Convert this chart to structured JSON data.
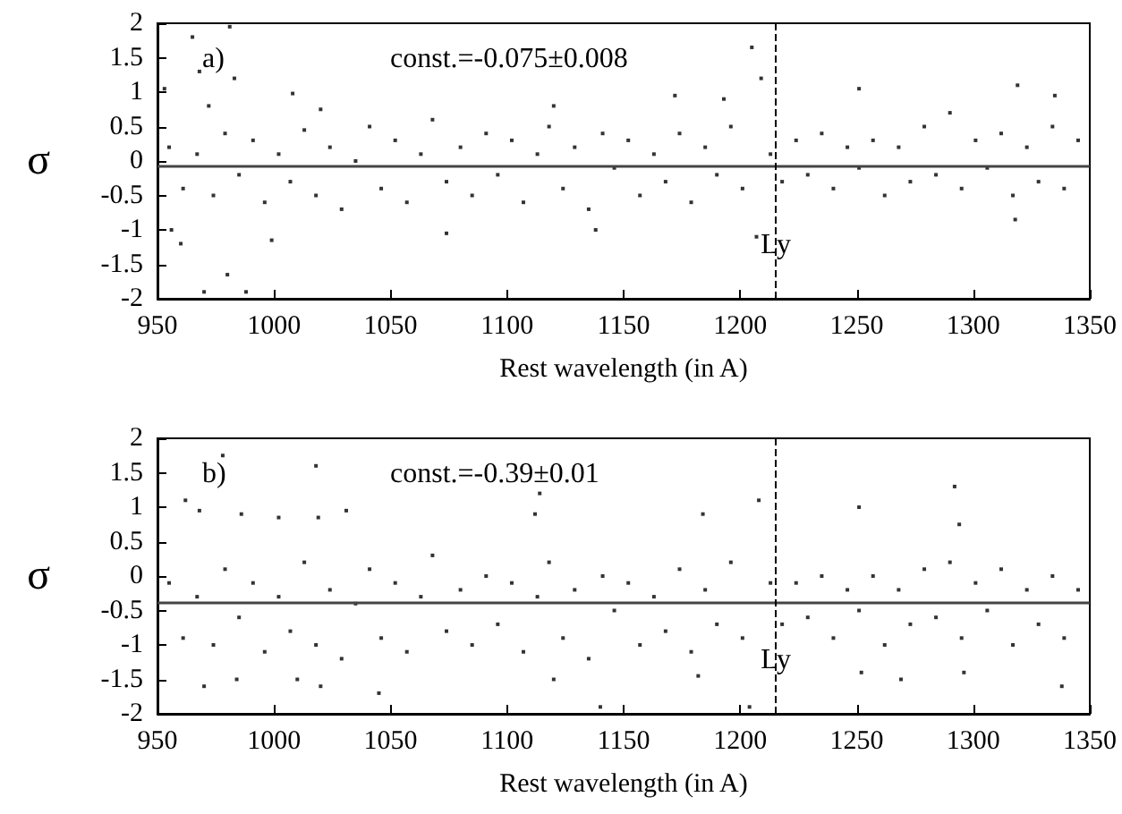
{
  "chart_data": [
    {
      "type": "scatter",
      "xlabel": "Rest wavelength (in A)",
      "ylabel": "σ",
      "color": "#000000",
      "marker": "square",
      "grid": false,
      "xlim": [
        950,
        1350
      ],
      "xticks": [
        950,
        1000,
        1050,
        1100,
        1150,
        1200,
        1250,
        1300,
        1350
      ],
      "ylim": [
        -2,
        2
      ],
      "yticks": [
        -2,
        -1.5,
        -1,
        -0.5,
        0,
        0.5,
        1,
        1.5,
        2
      ],
      "annotations": [
        "a)",
        "const.=-0.075±0.008"
      ],
      "ref_lines": [
        {
          "axis": "y",
          "value": -0.075,
          "color": "#444444",
          "line_style": "solid"
        },
        {
          "axis": "x",
          "value": 1215,
          "label": "Ly",
          "color": "#000000",
          "line_style": "dashed"
        }
      ],
      "x": [
        955,
        961,
        967,
        974,
        979,
        985,
        991,
        996,
        1002,
        1007,
        1013,
        1018,
        1024,
        1029,
        1035,
        1041,
        1046,
        1052,
        1057,
        1063,
        1068,
        1074,
        1080,
        1085,
        1091,
        1096,
        1102,
        1107,
        1113,
        1118,
        1124,
        1129,
        1135,
        1141,
        1146,
        1152,
        1157,
        1163,
        1168,
        1174,
        1179,
        1185,
        1190,
        1196,
        1201,
        1213,
        1218,
        1224,
        1229,
        1235,
        1240,
        1246,
        1251,
        1257,
        1262,
        1268,
        1273,
        1279,
        1284,
        1290,
        1295,
        1301,
        1306,
        1312,
        1317,
        1323,
        1328,
        1334,
        1339,
        1345,
        953,
        965,
        968,
        972,
        981,
        983,
        956,
        960,
        970,
        980,
        988,
        999,
        1008,
        1020,
        1074,
        1120,
        1138,
        1172,
        1193,
        1205,
        1209,
        1207,
        1251,
        1319,
        1318,
        1335
      ],
      "values": [
        0.2,
        -0.4,
        0.1,
        -0.5,
        0.4,
        -0.2,
        0.3,
        -0.6,
        0.1,
        -0.3,
        0.45,
        -0.5,
        0.2,
        -0.7,
        0.0,
        0.5,
        -0.4,
        0.3,
        -0.6,
        0.1,
        0.6,
        -0.3,
        0.2,
        -0.5,
        0.4,
        -0.2,
        0.3,
        -0.6,
        0.1,
        0.5,
        -0.4,
        0.2,
        -0.7,
        0.4,
        -0.1,
        0.3,
        -0.5,
        0.1,
        -0.3,
        0.4,
        -0.6,
        0.2,
        -0.2,
        0.5,
        -0.4,
        0.1,
        -0.3,
        0.3,
        -0.2,
        0.4,
        -0.4,
        0.2,
        -0.1,
        0.3,
        -0.5,
        0.2,
        -0.3,
        0.5,
        -0.2,
        0.7,
        -0.4,
        0.3,
        -0.1,
        0.4,
        -0.5,
        0.2,
        -0.3,
        0.5,
        -0.4,
        0.3,
        1.05,
        1.8,
        1.3,
        0.8,
        1.95,
        1.2,
        -1.0,
        -1.2,
        -1.9,
        -1.65,
        -1.9,
        -1.15,
        0.98,
        0.75,
        -1.05,
        0.8,
        -1.0,
        0.95,
        0.9,
        1.65,
        1.2,
        -1.1,
        1.05,
        1.1,
        -0.85,
        0.95
      ]
    },
    {
      "type": "scatter",
      "xlabel": "Rest wavelength (in A)",
      "ylabel": "σ",
      "color": "#000000",
      "marker": "square",
      "grid": false,
      "xlim": [
        950,
        1350
      ],
      "xticks": [
        950,
        1000,
        1050,
        1100,
        1150,
        1200,
        1250,
        1300,
        1350
      ],
      "ylim": [
        -2,
        2
      ],
      "yticks": [
        -2,
        -1.5,
        -1,
        -0.5,
        0,
        0.5,
        1,
        1.5,
        2
      ],
      "annotations": [
        "b)",
        "const.=-0.39±0.01"
      ],
      "ref_lines": [
        {
          "axis": "y",
          "value": -0.39,
          "color": "#444444",
          "line_style": "solid"
        },
        {
          "axis": "x",
          "value": 1215,
          "label": "Ly",
          "color": "#000000",
          "line_style": "dashed"
        }
      ],
      "x": [
        955,
        961,
        967,
        974,
        979,
        985,
        991,
        996,
        1002,
        1007,
        1013,
        1018,
        1024,
        1029,
        1035,
        1041,
        1046,
        1052,
        1057,
        1063,
        1068,
        1074,
        1080,
        1085,
        1091,
        1096,
        1102,
        1107,
        1113,
        1118,
        1124,
        1129,
        1135,
        1141,
        1146,
        1152,
        1157,
        1163,
        1168,
        1174,
        1179,
        1185,
        1190,
        1196,
        1201,
        1213,
        1218,
        1224,
        1229,
        1235,
        1240,
        1246,
        1251,
        1257,
        1262,
        1268,
        1273,
        1279,
        1284,
        1290,
        1295,
        1301,
        1306,
        1312,
        1317,
        1323,
        1328,
        1334,
        1339,
        1345,
        962,
        968,
        978,
        986,
        1002,
        1018,
        1019,
        1031,
        1112,
        1114,
        1184,
        1208,
        1251,
        1292,
        1294,
        970,
        984,
        1010,
        1020,
        1045,
        1120,
        1140,
        1182,
        1204,
        1252,
        1269,
        1296,
        1338
      ],
      "values": [
        -0.1,
        -0.9,
        -0.3,
        -1.0,
        0.1,
        -0.6,
        -0.1,
        -1.1,
        -0.3,
        -0.8,
        0.2,
        -1.0,
        -0.2,
        -1.2,
        -0.4,
        0.1,
        -0.9,
        -0.1,
        -1.1,
        -0.3,
        0.3,
        -0.8,
        -0.2,
        -1.0,
        0.0,
        -0.7,
        -0.1,
        -1.1,
        -0.3,
        0.2,
        -0.9,
        -0.2,
        -1.2,
        0.0,
        -0.5,
        -0.1,
        -1.0,
        -0.3,
        -0.8,
        0.1,
        -1.1,
        -0.2,
        -0.7,
        0.2,
        -0.9,
        -0.1,
        -0.7,
        -0.1,
        -0.6,
        0.0,
        -0.9,
        -0.2,
        -0.5,
        0.0,
        -1.0,
        -0.2,
        -0.7,
        0.1,
        -0.6,
        0.2,
        -0.9,
        -0.1,
        -0.5,
        0.1,
        -1.0,
        -0.2,
        -0.7,
        0.0,
        -0.9,
        -0.2,
        1.1,
        0.95,
        1.75,
        0.9,
        0.85,
        1.6,
        0.85,
        0.95,
        0.9,
        1.2,
        0.9,
        1.1,
        1.0,
        1.3,
        0.75,
        -1.6,
        -1.5,
        -1.5,
        -1.6,
        -1.7,
        -1.5,
        -1.9,
        -1.45,
        -1.9,
        -1.4,
        -1.5,
        -1.4,
        -1.6
      ]
    }
  ]
}
